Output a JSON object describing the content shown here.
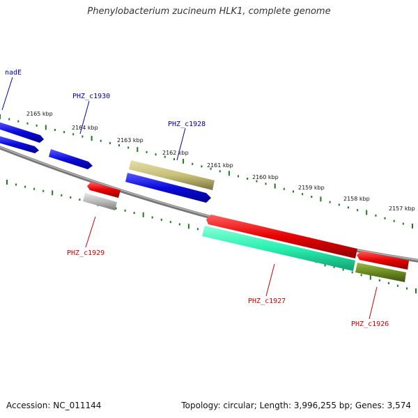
{
  "title": "Phenylobacterium zucineum HLK1, complete genome",
  "footer": {
    "accession": "Accession: NC_011144",
    "stats": "Topology: circular; Length: 3,996,255 bp; Genes: 3,574"
  },
  "ticks": [
    "2165 kbp",
    "2164 kbp",
    "2163 kbp",
    "2162 kbp",
    "2161 kbp",
    "2160 kbp",
    "2159 kbp",
    "2158 kbp",
    "2157 kbp"
  ],
  "labels": {
    "nadE": "nadE",
    "PHZ_c1930": "PHZ_c1930",
    "PHZ_c1928": "PHZ_c1928",
    "PHZ_c1929": "PHZ_c1929",
    "PHZ_c1927": "PHZ_c1927",
    "PHZ_c1926": "PHZ_c1926"
  },
  "colors": {
    "forward_label": "#0000aa",
    "reverse_label": "#cc0000",
    "blue": "#0a0adc",
    "red": "#e60000",
    "olive": "#c8c078",
    "gray": "#b8b8b8",
    "mint": "#28f0b0",
    "darkolive": "#6a8a20",
    "tick_green": "#1e7a1e",
    "backbone": "#888888"
  }
}
